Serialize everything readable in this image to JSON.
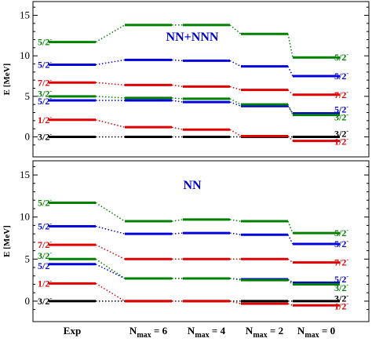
{
  "chart_data": {
    "type": "level-scheme",
    "x_categories": [
      {
        "main": "Exp",
        "sub": ""
      },
      {
        "main": "N",
        "sub": "max",
        "suffix": " = 6"
      },
      {
        "main": "N",
        "sub": "max",
        "suffix": " = 4"
      },
      {
        "main": "N",
        "sub": "max",
        "suffix": " = 2"
      },
      {
        "main": "N",
        "sub": "max",
        "suffix": " = 0"
      }
    ],
    "ylabel": "E [MeV]",
    "yticks": [
      0,
      5,
      10,
      15
    ],
    "colors": {
      "1/2-": "#e00000",
      "3/2-": "#000000",
      "5/2-": "#0000dd",
      "5/2- green": "#008000",
      "3/2- green": "#008000",
      "7/2-": "#e00000"
    },
    "panels": [
      {
        "title": "NN+NNN",
        "ylim": [
          -1.5,
          16.5
        ],
        "levels": [
          {
            "label": "3/2",
            "color": "#000000",
            "values": [
              0.0,
              0.0,
              0.0,
              0.0,
              0.0
            ]
          },
          {
            "label": "1/2",
            "color": "#e00000",
            "values": [
              2.1,
              1.2,
              0.9,
              0.1,
              -0.5
            ]
          },
          {
            "label": "5/2",
            "color": "#0000dd",
            "values": [
              4.5,
              4.5,
              4.3,
              3.8,
              2.9
            ]
          },
          {
            "label": "3/2",
            "color": "#008000",
            "values": [
              5.0,
              4.8,
              4.7,
              4.0,
              2.7
            ]
          },
          {
            "label": "7/2",
            "color": "#e00000",
            "values": [
              6.7,
              6.4,
              6.2,
              5.8,
              5.2
            ]
          },
          {
            "label": "5/2",
            "color": "#0000dd",
            "values": [
              8.9,
              9.5,
              9.4,
              8.7,
              7.5
            ]
          },
          {
            "label": "5/2",
            "color": "#008000",
            "values": [
              11.7,
              13.8,
              13.8,
              12.7,
              9.8
            ]
          }
        ],
        "left_labels": [
          {
            "text": "5/2",
            "color": "#008000",
            "y": 11.7
          },
          {
            "text": "5/2",
            "color": "#0000dd",
            "y": 8.9
          },
          {
            "text": "7/2",
            "color": "#e00000",
            "y": 6.7
          },
          {
            "text": "3/2",
            "color": "#008000",
            "y": 5.3
          },
          {
            "text": "5/2",
            "color": "#0000dd",
            "y": 4.4
          },
          {
            "text": "1/2",
            "color": "#e00000",
            "y": 2.1
          },
          {
            "text": "3/2",
            "color": "#000000",
            "y": 0.0
          }
        ],
        "right_labels": [
          {
            "text": "5/2",
            "color": "#008000",
            "y": 9.8
          },
          {
            "text": "5/2",
            "color": "#0000dd",
            "y": 7.5
          },
          {
            "text": "7/2",
            "color": "#e00000",
            "y": 5.2
          },
          {
            "text": "5/2",
            "color": "#0000dd",
            "y": 3.4
          },
          {
            "text": "3/2",
            "color": "#008000",
            "y": 2.4
          },
          {
            "text": "3/2",
            "color": "#000000",
            "y": 0.4
          },
          {
            "text": "1/2",
            "color": "#e00000",
            "y": -0.6
          }
        ]
      },
      {
        "title": "NN",
        "ylim": [
          -1.5,
          16.5
        ],
        "levels": [
          {
            "label": "3/2",
            "color": "#000000",
            "values": [
              0.0,
              0.0,
              0.0,
              0.0,
              0.0
            ]
          },
          {
            "label": "1/2",
            "color": "#e00000",
            "values": [
              2.1,
              0.0,
              0.0,
              -0.3,
              -0.5
            ]
          },
          {
            "label": "5/2",
            "color": "#0000dd",
            "values": [
              4.4,
              2.7,
              2.7,
              2.6,
              2.2
            ]
          },
          {
            "label": "3/2",
            "color": "#008000",
            "values": [
              5.0,
              2.7,
              2.7,
              2.5,
              2.0
            ]
          },
          {
            "label": "7/2",
            "color": "#e00000",
            "values": [
              6.7,
              5.0,
              5.0,
              5.0,
              4.6
            ]
          },
          {
            "label": "5/2",
            "color": "#0000dd",
            "values": [
              8.9,
              8.0,
              8.1,
              7.9,
              6.8
            ]
          },
          {
            "label": "5/2",
            "color": "#008000",
            "values": [
              11.7,
              9.5,
              9.7,
              9.5,
              8.1
            ]
          }
        ],
        "left_labels": [
          {
            "text": "5/2",
            "color": "#008000",
            "y": 11.7
          },
          {
            "text": "5/2",
            "color": "#0000dd",
            "y": 8.9
          },
          {
            "text": "7/2",
            "color": "#e00000",
            "y": 6.7
          },
          {
            "text": "3/2",
            "color": "#008000",
            "y": 5.4
          },
          {
            "text": "5/2",
            "color": "#0000dd",
            "y": 4.2
          },
          {
            "text": "1/2",
            "color": "#e00000",
            "y": 2.1
          },
          {
            "text": "3/2",
            "color": "#000000",
            "y": 0.0
          }
        ],
        "right_labels": [
          {
            "text": "5/2",
            "color": "#008000",
            "y": 8.1
          },
          {
            "text": "5/2",
            "color": "#0000dd",
            "y": 6.8
          },
          {
            "text": "7/2",
            "color": "#e00000",
            "y": 4.6
          },
          {
            "text": "5/2",
            "color": "#0000dd",
            "y": 2.6
          },
          {
            "text": "3/2",
            "color": "#008000",
            "y": 1.6
          },
          {
            "text": "3/2",
            "color": "#000000",
            "y": 0.3
          },
          {
            "text": "1/2",
            "color": "#e00000",
            "y": -0.6
          }
        ]
      }
    ]
  }
}
